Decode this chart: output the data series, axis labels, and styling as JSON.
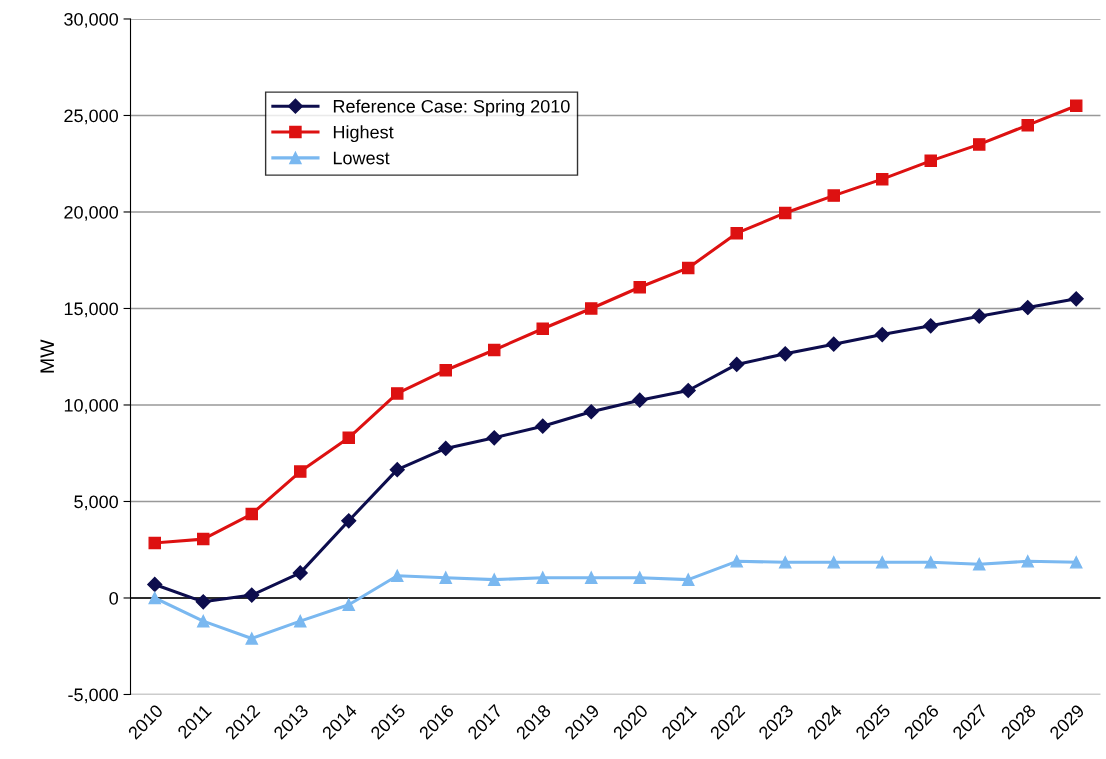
{
  "chart_data": {
    "type": "line",
    "ylabel": "MW",
    "categories": [
      "2010",
      "2011",
      "2012",
      "2013",
      "2014",
      "2015",
      "2016",
      "2017",
      "2018",
      "2019",
      "2020",
      "2021",
      "2022",
      "2023",
      "2024",
      "2025",
      "2026",
      "2027",
      "2028",
      "2029"
    ],
    "series": [
      {
        "name": "Reference Case: Spring 2010",
        "color": "#0d0d4d",
        "marker": "diamond",
        "values": [
          700,
          -200,
          150,
          1300,
          4000,
          6650,
          7750,
          8300,
          8900,
          9650,
          10250,
          10750,
          12100,
          12650,
          13150,
          13650,
          14100,
          14600,
          15050,
          15500
        ]
      },
      {
        "name": "Highest",
        "color": "#dd1111",
        "marker": "square",
        "values": [
          2850,
          3050,
          4350,
          6550,
          8300,
          10600,
          11800,
          12850,
          13950,
          15000,
          16100,
          17100,
          18900,
          19950,
          20850,
          21700,
          22650,
          23500,
          24500,
          25500
        ]
      },
      {
        "name": "Lowest",
        "color": "#7ab8f0",
        "marker": "triangle",
        "values": [
          0,
          -1200,
          -2100,
          -1200,
          -350,
          1150,
          1050,
          950,
          1050,
          1050,
          1050,
          950,
          1900,
          1850,
          1850,
          1850,
          1850,
          1750,
          1900,
          1850
        ]
      }
    ],
    "ylim": [
      -5000,
      30000
    ],
    "yticks": [
      {
        "value": -5000,
        "label": "-5,000"
      },
      {
        "value": 0,
        "label": "0"
      },
      {
        "value": 5000,
        "label": "5,000"
      },
      {
        "value": 10000,
        "label": "10,000"
      },
      {
        "value": 15000,
        "label": "15,000"
      },
      {
        "value": 20000,
        "label": "20,000"
      },
      {
        "value": 25000,
        "label": "25,000"
      },
      {
        "value": 30000,
        "label": "30,000"
      }
    ],
    "grid": "y",
    "legend": "top left",
    "line_style": "solid"
  }
}
